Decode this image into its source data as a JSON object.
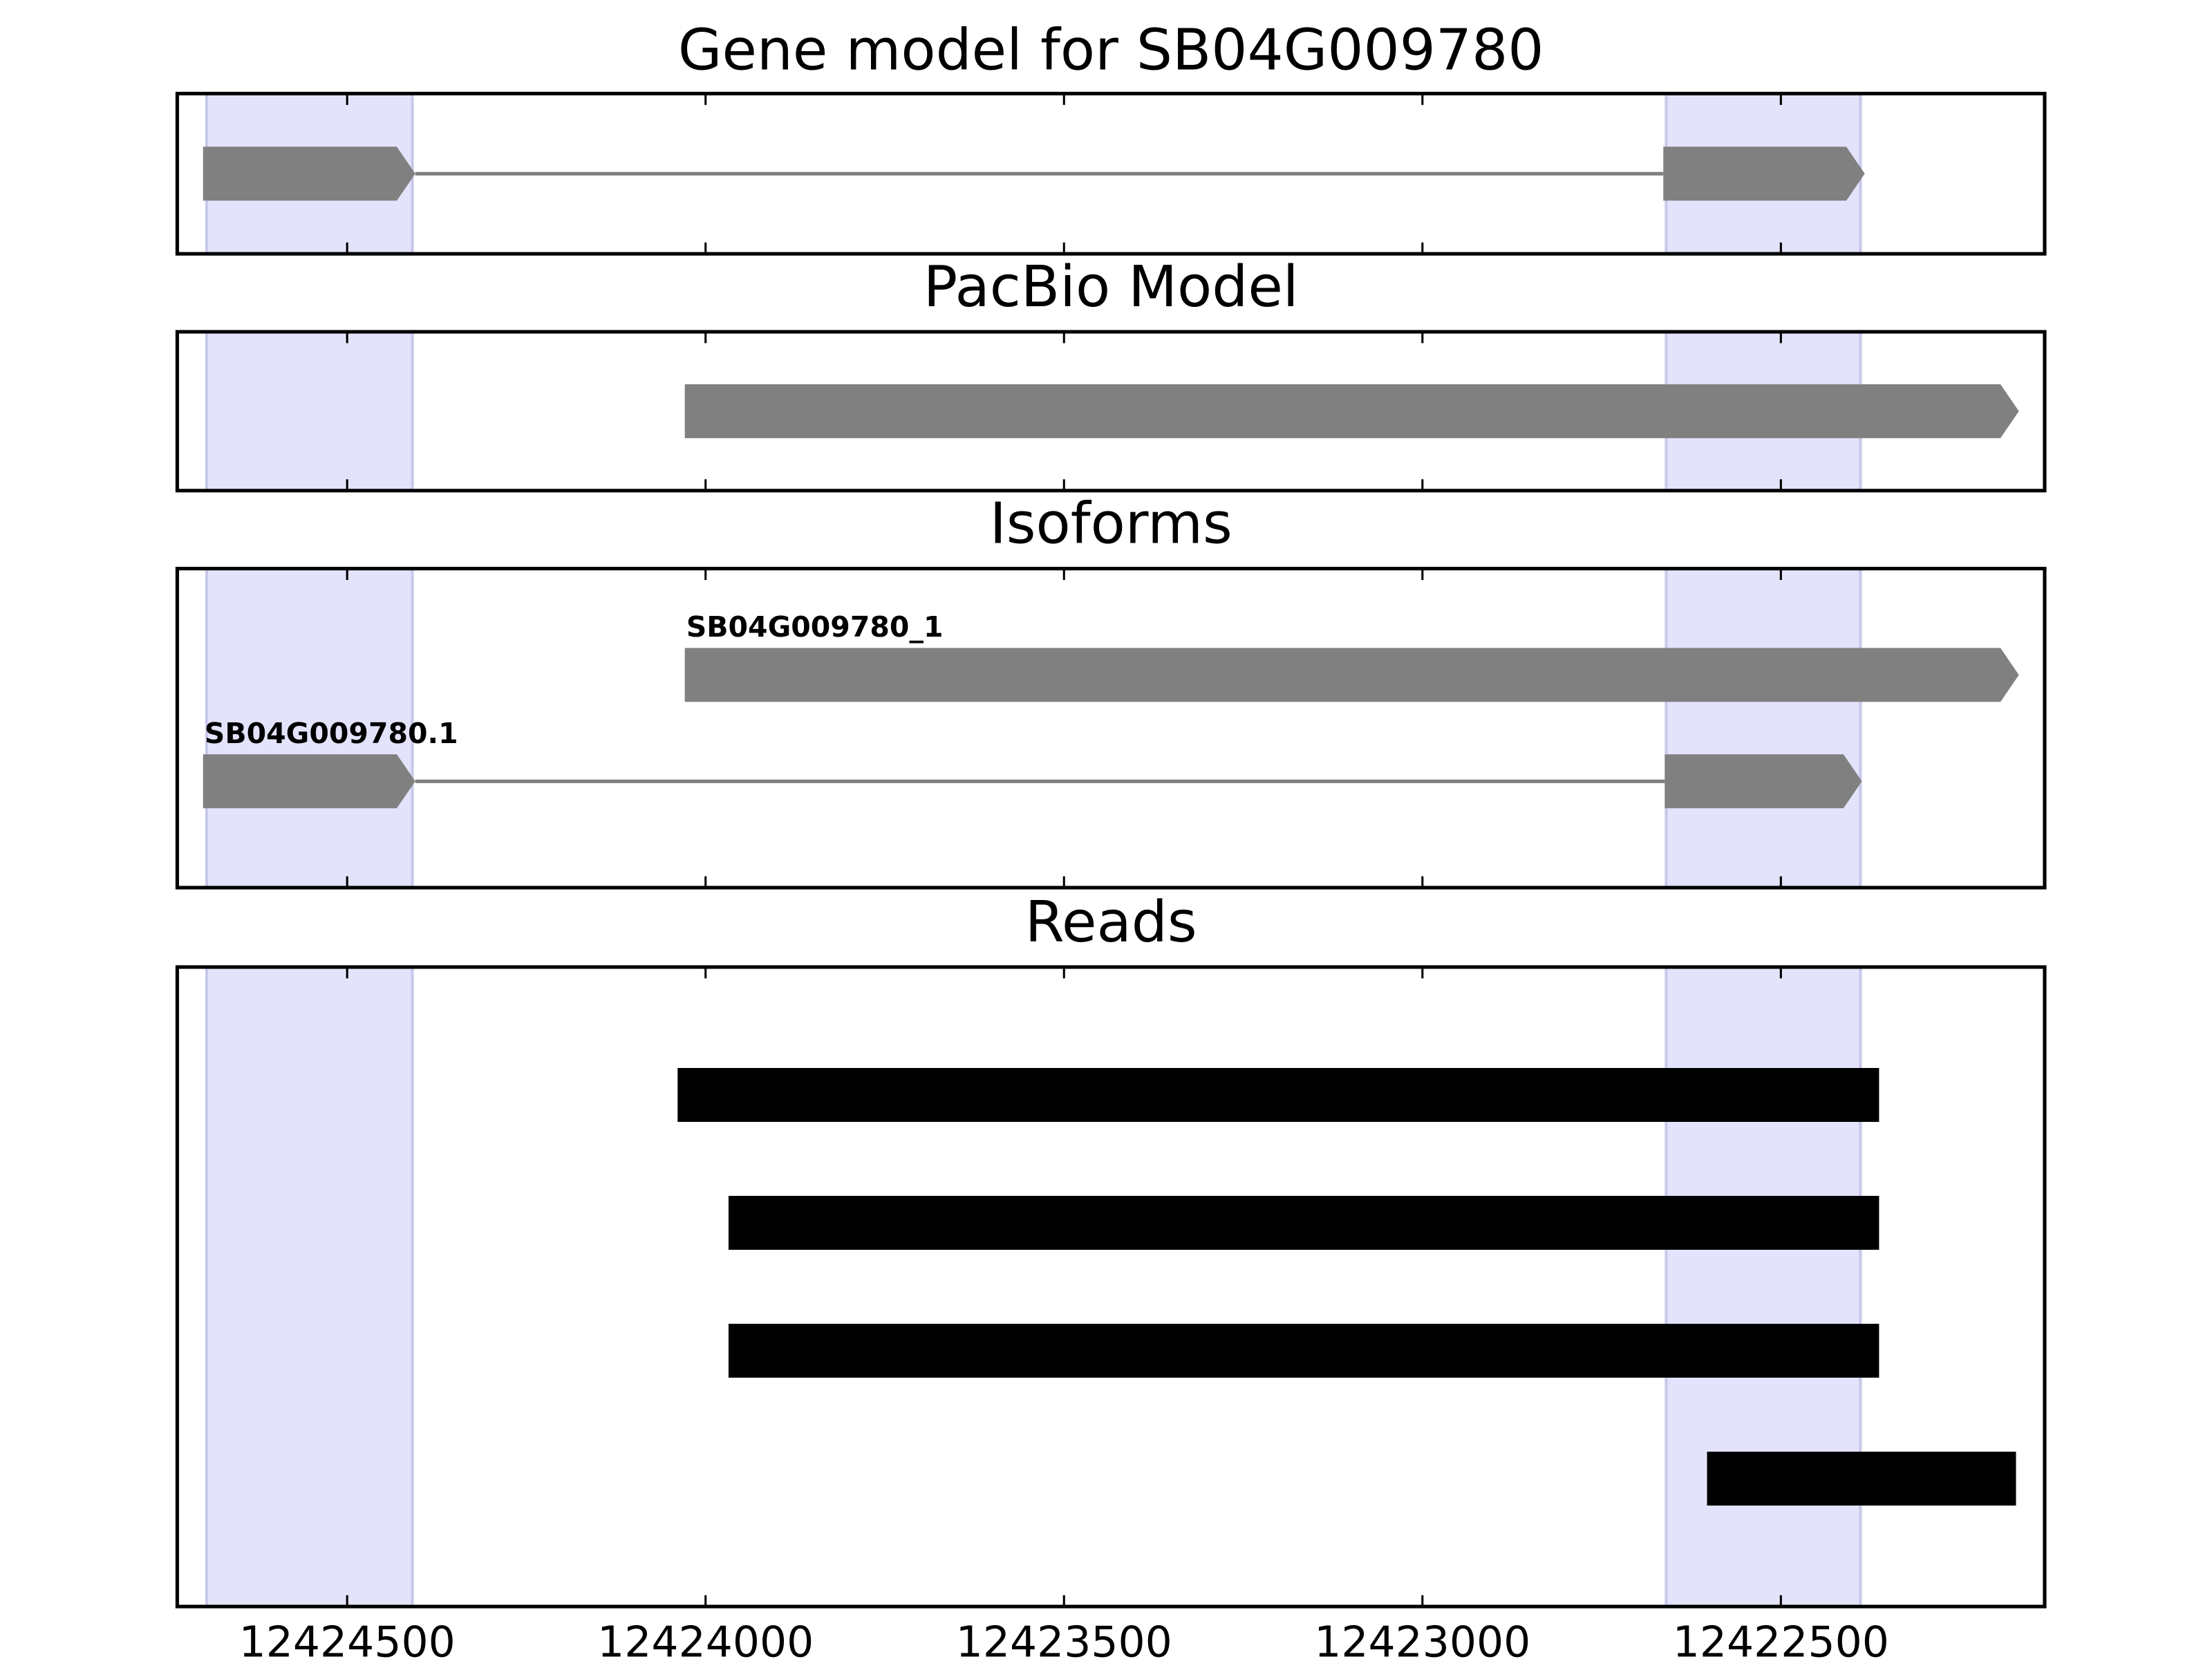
{
  "chart_data": [
    {
      "type": "track",
      "title": "Gene model for SB04G009780",
      "xlim": [
        12424737,
        12422132
      ],
      "xticks": [
        12424500,
        12424000,
        12423500,
        12423000,
        12422500
      ],
      "highlights": [
        [
          12424696,
          12424409
        ],
        [
          12422660,
          12422389
        ]
      ],
      "highlight_color": "#e3e3fb",
      "arrows": true,
      "features": [
        {
          "exons": [
            [
              12424701,
              12424405
            ],
            [
              12422664,
              12422383
            ]
          ],
          "color": "#808080"
        }
      ]
    },
    {
      "type": "track",
      "title": "PacBio Model",
      "xlim": [
        12424737,
        12422132
      ],
      "xticks": [
        12424500,
        12424000,
        12423500,
        12423000,
        12422500
      ],
      "highlights": [
        [
          12424696,
          12424409
        ],
        [
          12422660,
          12422389
        ]
      ],
      "highlight_color": "#e3e3fb",
      "arrows": true,
      "features": [
        {
          "exons": [
            [
              12424029,
              12422168
            ]
          ],
          "color": "#808080"
        }
      ]
    },
    {
      "type": "track",
      "title": "Isoforms",
      "xlim": [
        12424737,
        12422132
      ],
      "xticks": [
        12424500,
        12424000,
        12423500,
        12423000,
        12422500
      ],
      "highlights": [
        [
          12424696,
          12424409
        ],
        [
          12422660,
          12422389
        ]
      ],
      "highlight_color": "#e3e3fb",
      "arrows": true,
      "features": [
        {
          "name": "SB04G009780_1",
          "exons": [
            [
              12424029,
              12422168
            ]
          ],
          "color": "#808080"
        },
        {
          "name": "SB04G009780.1",
          "exons": [
            [
              12424701,
              12424405
            ],
            [
              12422662,
              12422387
            ]
          ],
          "color": "#808080"
        }
      ]
    },
    {
      "type": "track",
      "title": "Reads",
      "xlim": [
        12424737,
        12422132
      ],
      "xticks": [
        12424500,
        12424000,
        12423500,
        12423000,
        12422500
      ],
      "tick_labels": true,
      "highlights": [
        [
          12424696,
          12424409
        ],
        [
          12422660,
          12422389
        ]
      ],
      "highlight_color": "#e3e3fb",
      "arrows": false,
      "features": [
        {
          "exons": [
            [
              12424039,
              12422363
            ]
          ],
          "color": "#000000"
        },
        {
          "exons": [
            [
              12423968,
              12422363
            ]
          ],
          "color": "#000000"
        },
        {
          "exons": [
            [
              12423968,
              12422363
            ]
          ],
          "color": "#000000"
        },
        {
          "exons": [
            [
              12422603,
              12422172
            ]
          ],
          "color": "#000000"
        }
      ]
    }
  ]
}
